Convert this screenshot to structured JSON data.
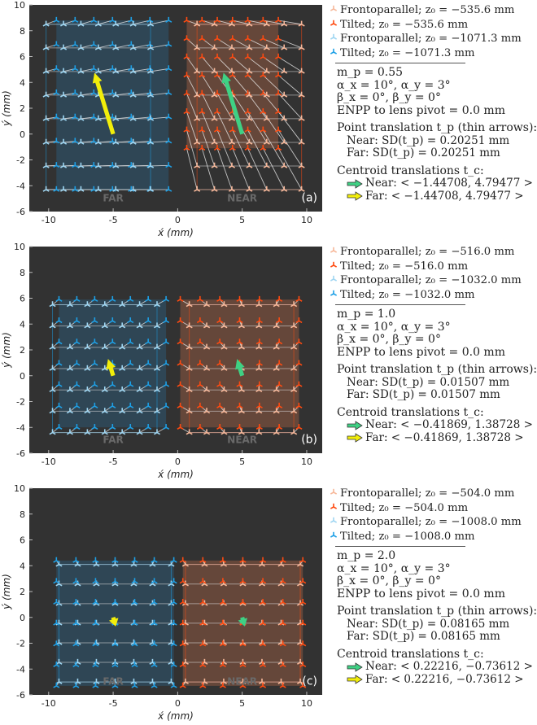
{
  "colors": {
    "plot_bg": "#323232",
    "far_fronto": "#9fd6f2",
    "far_tilted": "#1ea0e6",
    "near_fronto": "#f7b89a",
    "near_tilted": "#ff4a10",
    "far_fill": "#2f4a5c",
    "near_fill": "#6e4b3c",
    "green": "#3fd184",
    "yellow": "#f2ee0a",
    "grid_line": "#dddddd"
  },
  "chart_data": [
    {
      "type": "scatter",
      "panel_label": "(a)",
      "xlabel": "x́ (mm)",
      "ylabel": "ý (mm)",
      "xlim": [
        -11.5,
        11.2
      ],
      "ylim": [
        -6,
        10
      ],
      "xticks": [
        "-10",
        "-5",
        "0",
        "5",
        "10"
      ],
      "yticks": [
        "-6",
        "-4",
        "-2",
        "0",
        "2",
        "4",
        "6",
        "8",
        "10"
      ],
      "region_labels": [
        "FAR",
        "NEAR"
      ],
      "far": {
        "fronto": {
          "x": [
            -10.2,
            -2.1
          ],
          "y": [
            -4.3,
            8.5
          ]
        },
        "tilted": {
          "x": [
            -9.4,
            -0.7
          ],
          "y": [
            -4.3,
            8.8
          ]
        }
      },
      "near": {
        "fronto": {
          "x": [
            1.5,
            9.6
          ],
          "y": [
            -4.3,
            8.5
          ]
        },
        "tilted": {
          "x": [
            0.7,
            7.8
          ],
          "y": [
            -1.1,
            8.8
          ]
        }
      },
      "rows": 8,
      "cols": 7,
      "point_translation": [
        1.2,
        -0.4
      ],
      "green_arrow": {
        "from": [
          5.0,
          0.0
        ],
        "to": [
          3.55,
          4.75
        ]
      },
      "yellow_arrow": {
        "from": [
          -5.0,
          0.0
        ],
        "to": [
          -6.45,
          4.75
        ]
      },
      "legend": [
        {
          "label": "Frontoparallel;",
          "z": "z₀ = −535.6 mm",
          "kind": "near_fronto"
        },
        {
          "label": "Tilted;",
          "z": "z₀ = −535.6 mm",
          "kind": "near_tilted"
        },
        {
          "label": "Frontoparallel;",
          "z": "z₀ = −1071.3 mm",
          "kind": "far_fronto"
        },
        {
          "label": "Tilted;",
          "z": "z₀ = −1071.3 mm",
          "kind": "far_tilted"
        }
      ],
      "m_p": "m_p = 0.55",
      "alpha": "α_x = 10°, α_y = 3°",
      "beta": "β_x = 0°, β_y = 0°",
      "enpp": "ENPP to lens pivot = 0.0 mm",
      "point_title": "Point translation t_p (thin arrows):",
      "near_sd": "Near: SD(t_p) = 0.20251 mm",
      "far_sd": "Far: SD(t_p) = 0.20251 mm",
      "centroid_title": "Centroid translations t_c:",
      "near_centroid": "Near: < −1.44708, 4.79477 >",
      "far_centroid": "Far: < −1.44708, 4.79477 >"
    },
    {
      "type": "scatter",
      "panel_label": "(b)",
      "xlabel": "x́ (mm)",
      "ylabel": "ý (mm)",
      "xlim": [
        -11.5,
        11.2
      ],
      "ylim": [
        -6,
        10
      ],
      "xticks": [
        "-10",
        "-5",
        "0",
        "5",
        "10"
      ],
      "yticks": [
        "-6",
        "-4",
        "-2",
        "0",
        "2",
        "4",
        "6",
        "8",
        "10"
      ],
      "region_labels": [
        "FAR",
        "NEAR"
      ],
      "far": {
        "fronto": {
          "x": [
            -9.7,
            -1.6
          ],
          "y": [
            -4.4,
            5.5
          ]
        },
        "tilted": {
          "x": [
            -9.2,
            -0.9
          ],
          "y": [
            -4.0,
            5.9
          ]
        }
      },
      "near": {
        "fronto": {
          "x": [
            0.9,
            9.0
          ],
          "y": [
            -4.4,
            5.5
          ]
        },
        "tilted": {
          "x": [
            0.2,
            9.4
          ],
          "y": [
            -4.0,
            5.9
          ]
        }
      },
      "rows": 7,
      "cols": 7,
      "point_translation": [
        0.6,
        -0.35
      ],
      "green_arrow": {
        "from": [
          5.0,
          0.0
        ],
        "to": [
          4.6,
          1.3
        ]
      },
      "yellow_arrow": {
        "from": [
          -5.0,
          0.0
        ],
        "to": [
          -5.4,
          1.3
        ]
      },
      "legend": [
        {
          "label": "Frontoparallel;",
          "z": "z₀ = −516.0 mm",
          "kind": "near_fronto"
        },
        {
          "label": "Tilted;",
          "z": "z₀ = −516.0 mm",
          "kind": "near_tilted"
        },
        {
          "label": "Frontoparallel;",
          "z": "z₀ = −1032.0 mm",
          "kind": "far_fronto"
        },
        {
          "label": "Tilted;",
          "z": "z₀ = −1032.0 mm",
          "kind": "far_tilted"
        }
      ],
      "m_p": "m_p = 1.0",
      "alpha": "α_x = 10°, α_y = 3°",
      "beta": "β_x = 0°, β_y = 0°",
      "enpp": "ENPP to lens pivot = 0.0 mm",
      "point_title": "Point translation t_p (thin arrows):",
      "near_sd": "Near: SD(t_p) = 0.01507 mm",
      "far_sd": "Far: SD(t_p) = 0.01507 mm",
      "centroid_title": "Centroid translations t_c:",
      "near_centroid": "Near: < −0.41869, 1.38728 >",
      "far_centroid": "Far: < −0.41869, 1.38728 >"
    },
    {
      "type": "scatter",
      "panel_label": "(c)",
      "xlabel": "x́ (mm)",
      "ylabel": "ý (mm)",
      "xlim": [
        -11.5,
        11.2
      ],
      "ylim": [
        -6,
        10
      ],
      "xticks": [
        "-10",
        "-5",
        "0",
        "5",
        "10"
      ],
      "yticks": [
        "-6",
        "-4",
        "-2",
        "0",
        "2",
        "4",
        "6",
        "8",
        "10"
      ],
      "region_labels": [
        "FAR",
        "NEAR"
      ],
      "far": {
        "fronto": {
          "x": [
            -9.2,
            -0.5
          ],
          "y": [
            -5.0,
            4.1
          ]
        },
        "tilted": {
          "x": [
            -9.4,
            -0.3
          ],
          "y": [
            -5.3,
            4.4
          ]
        }
      },
      "near": {
        "fronto": {
          "x": [
            0.6,
            9.5
          ],
          "y": [
            -5.0,
            4.1
          ]
        },
        "tilted": {
          "x": [
            0.4,
            9.7
          ],
          "y": [
            -5.3,
            4.4
          ]
        }
      },
      "rows": 7,
      "cols": 7,
      "point_translation": [
        -0.15,
        0.3
      ],
      "green_arrow": {
        "from": [
          5.0,
          0.0
        ],
        "to": [
          5.2,
          -0.7
        ]
      },
      "yellow_arrow": {
        "from": [
          -5.0,
          0.0
        ],
        "to": [
          -4.8,
          -0.7
        ]
      },
      "legend": [
        {
          "label": "Frontoparallel;",
          "z": "z₀ = −504.0 mm",
          "kind": "near_fronto"
        },
        {
          "label": "Tilted;",
          "z": "z₀ = −504.0 mm",
          "kind": "near_tilted"
        },
        {
          "label": "Frontoparallel;",
          "z": "z₀ = −1008.0 mm",
          "kind": "far_fronto"
        },
        {
          "label": "Tilted;",
          "z": "z₀ = −1008.0 mm",
          "kind": "far_tilted"
        }
      ],
      "m_p": "m_p = 2.0",
      "alpha": "α_x = 10°, α_y = 3°",
      "beta": "β_x = 0°, β_y = 0°",
      "enpp": "ENPP to lens pivot = 0.0 mm",
      "point_title": "Point translation t_p (thin arrows):",
      "near_sd": "Near: SD(t_p) = 0.08165 mm",
      "far_sd": "Far: SD(t_p) = 0.08165 mm",
      "centroid_title": "Centroid translations t_c:",
      "near_centroid": "Near: < 0.22216, −0.73612 >",
      "far_centroid": "Far: < 0.22216, −0.73612 >"
    }
  ]
}
